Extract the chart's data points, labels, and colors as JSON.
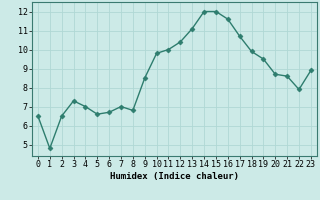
{
  "x": [
    0,
    1,
    2,
    3,
    4,
    5,
    6,
    7,
    8,
    9,
    10,
    11,
    12,
    13,
    14,
    15,
    16,
    17,
    18,
    19,
    20,
    21,
    22,
    23
  ],
  "y": [
    6.5,
    4.8,
    6.5,
    7.3,
    7.0,
    6.6,
    6.7,
    7.0,
    6.8,
    8.5,
    9.8,
    10.0,
    10.4,
    11.1,
    12.0,
    12.0,
    11.6,
    10.7,
    9.9,
    9.5,
    8.7,
    8.6,
    7.9,
    8.9
  ],
  "line_color": "#2e7d6e",
  "marker": "D",
  "marker_size": 2.5,
  "line_width": 1.0,
  "bg_color": "#cceae7",
  "grid_color": "#b0d8d4",
  "xlabel": "Humidex (Indice chaleur)",
  "xlim": [
    -0.5,
    23.5
  ],
  "ylim": [
    4.4,
    12.5
  ],
  "yticks": [
    5,
    6,
    7,
    8,
    9,
    10,
    11,
    12
  ],
  "xticks": [
    0,
    1,
    2,
    3,
    4,
    5,
    6,
    7,
    8,
    9,
    10,
    11,
    12,
    13,
    14,
    15,
    16,
    17,
    18,
    19,
    20,
    21,
    22,
    23
  ],
  "xlabel_fontsize": 6.5,
  "tick_fontsize": 6
}
